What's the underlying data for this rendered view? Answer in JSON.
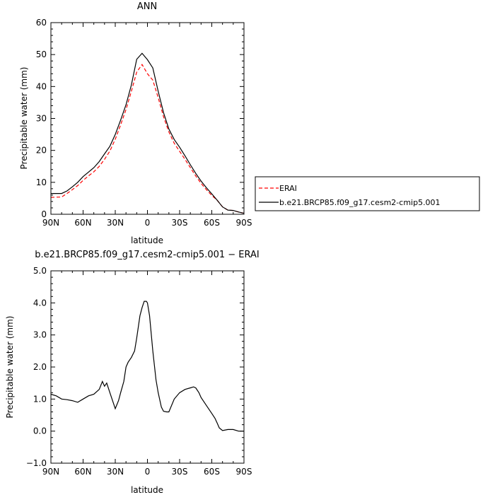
{
  "colors": {
    "erai": "#ff0000",
    "model": "#000000",
    "axes": "#000000"
  },
  "legend": {
    "entries": [
      {
        "label": "ERAI",
        "color": "#ff0000",
        "dash": true
      },
      {
        "label": "b.e21.BRCP85.f09_g17.cesm2-cmip5.001",
        "color": "#000000",
        "dash": false
      }
    ]
  },
  "chart_data": [
    {
      "type": "line",
      "title": "ANN",
      "xlabel": "latitude",
      "ylabel": "Precipitable water (mm)",
      "xlim": [
        90,
        -90
      ],
      "ylim": [
        0,
        60
      ],
      "xticks": [
        {
          "v": 90,
          "label": "90N"
        },
        {
          "v": 60,
          "label": "60N"
        },
        {
          "v": 30,
          "label": "30N"
        },
        {
          "v": 0,
          "label": "0"
        },
        {
          "v": -30,
          "label": "30S"
        },
        {
          "v": -60,
          "label": "60S"
        },
        {
          "v": -90,
          "label": "90S"
        }
      ],
      "yticks": [
        {
          "v": 0,
          "label": "0"
        },
        {
          "v": 10,
          "label": "10"
        },
        {
          "v": 20,
          "label": "20"
        },
        {
          "v": 30,
          "label": "30"
        },
        {
          "v": 40,
          "label": "40"
        },
        {
          "v": 50,
          "label": "50"
        },
        {
          "v": 60,
          "label": "60"
        }
      ],
      "series": [
        {
          "name": "ERAI",
          "color": "#ff0000",
          "dash": true,
          "x": [
            90,
            80,
            75,
            70,
            65,
            60,
            55,
            50,
            45,
            40,
            35,
            30,
            25,
            20,
            15,
            10,
            5,
            0,
            -5,
            -10,
            -15,
            -20,
            -25,
            -30,
            -35,
            -40,
            -45,
            -50,
            -55,
            -60,
            -65,
            -70,
            -75,
            -80,
            -85,
            -90
          ],
          "y": [
            5.3,
            5.4,
            6.5,
            7.7,
            9.0,
            10.6,
            12.0,
            13.3,
            15.0,
            17.2,
            19.8,
            23.5,
            28.0,
            32.8,
            38.5,
            44.5,
            46.9,
            44.0,
            42.0,
            36.5,
            30.5,
            25.8,
            22.2,
            19.7,
            17.2,
            14.6,
            12.0,
            9.7,
            7.7,
            5.9,
            4.4,
            2.3,
            1.3,
            1.2,
            0.7,
            0.3
          ]
        },
        {
          "name": "b.e21.BRCP85.f09_g17.cesm2-cmip5.001",
          "color": "#000000",
          "dash": false,
          "x": [
            90,
            80,
            75,
            70,
            65,
            60,
            55,
            50,
            45,
            40,
            35,
            30,
            25,
            20,
            15,
            10,
            5,
            0,
            -5,
            -10,
            -15,
            -20,
            -25,
            -30,
            -35,
            -40,
            -45,
            -50,
            -55,
            -60,
            -65,
            -70,
            -75,
            -80,
            -85,
            -90
          ],
          "y": [
            6.5,
            6.5,
            7.3,
            8.6,
            10.0,
            11.8,
            13.2,
            14.6,
            16.5,
            18.9,
            21.3,
            25.0,
            29.5,
            34.3,
            40.5,
            48.5,
            50.4,
            48.4,
            45.8,
            38.5,
            31.8,
            26.7,
            23.4,
            21.0,
            18.3,
            15.5,
            12.8,
            10.4,
            8.3,
            6.4,
            4.4,
            2.3,
            1.3,
            1.2,
            0.7,
            0.3
          ]
        }
      ]
    },
    {
      "type": "line",
      "title": "b.e21.BRCP85.f09_g17.cesm2-cmip5.001 − ERAI",
      "xlabel": "latitude",
      "ylabel": "Precipitable water (mm)",
      "xlim": [
        90,
        -90
      ],
      "ylim": [
        -1,
        5
      ],
      "xticks": [
        {
          "v": 90,
          "label": "90N"
        },
        {
          "v": 60,
          "label": "60N"
        },
        {
          "v": 30,
          "label": "30N"
        },
        {
          "v": 0,
          "label": "0"
        },
        {
          "v": -30,
          "label": "30S"
        },
        {
          "v": -60,
          "label": "60S"
        },
        {
          "v": -90,
          "label": "90S"
        }
      ],
      "yticks": [
        {
          "v": -1,
          "label": "−1.0"
        },
        {
          "v": 0,
          "label": "0.0"
        },
        {
          "v": 1,
          "label": "1.0"
        },
        {
          "v": 2,
          "label": "2.0"
        },
        {
          "v": 3,
          "label": "3.0"
        },
        {
          "v": 4,
          "label": "4.0"
        },
        {
          "v": 5,
          "label": "5.0"
        }
      ],
      "series": [
        {
          "color": "#000000",
          "dash": false,
          "x": [
            90,
            85,
            80,
            75,
            70,
            65,
            60,
            55,
            50,
            45,
            42,
            40,
            38,
            35,
            30,
            27,
            25,
            22,
            20,
            18,
            15,
            12,
            10,
            7,
            5,
            3,
            1,
            0,
            -2,
            -5,
            -8,
            -10,
            -13,
            -15,
            -18,
            -20,
            -25,
            -30,
            -35,
            -40,
            -43,
            -45,
            -48,
            -50,
            -55,
            -60,
            -63,
            -65,
            -67,
            -70,
            -75,
            -80,
            -85,
            -90
          ],
          "y": [
            1.15,
            1.1,
            1.0,
            0.98,
            0.95,
            0.9,
            1.0,
            1.1,
            1.15,
            1.3,
            1.55,
            1.4,
            1.5,
            1.2,
            0.7,
            0.95,
            1.2,
            1.55,
            2.0,
            2.15,
            2.3,
            2.5,
            2.9,
            3.6,
            3.85,
            4.05,
            4.05,
            4.0,
            3.6,
            2.5,
            1.6,
            1.2,
            0.75,
            0.62,
            0.6,
            0.6,
            1.0,
            1.2,
            1.3,
            1.35,
            1.38,
            1.35,
            1.2,
            1.05,
            0.8,
            0.55,
            0.4,
            0.25,
            0.1,
            0.02,
            0.05,
            0.05,
            0.0,
            0.0
          ]
        }
      ]
    }
  ]
}
